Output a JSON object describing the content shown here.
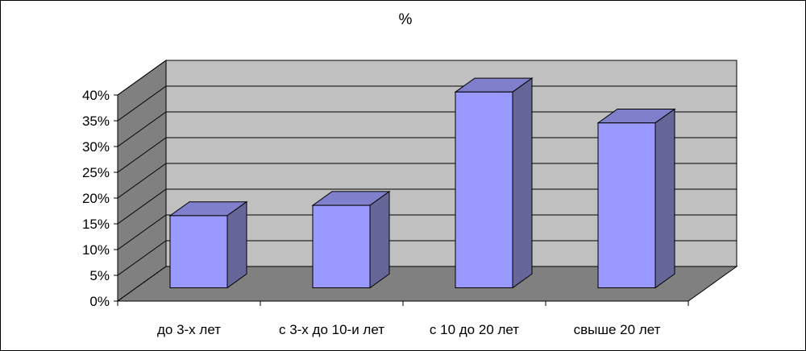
{
  "chart_data": {
    "type": "bar",
    "title": "%",
    "categories": [
      "до 3-х лет",
      "с 3-х до 10-и лет",
      "с 10 до 20 лет",
      "свыше 20 лет"
    ],
    "values": [
      14,
      16,
      38,
      32
    ],
    "value_unit": "%",
    "ylim": [
      0,
      40
    ],
    "ytick_labels": [
      "0%",
      "5%",
      "10%",
      "15%",
      "20%",
      "25%",
      "30%",
      "35%",
      "40%"
    ],
    "grid": true,
    "legend": "none",
    "style": "3d-column",
    "colors": {
      "bar_front": "#9999FF",
      "bar_side": "#666699",
      "bar_top": "#7F7FCC",
      "back_wall": "#C0C0C0",
      "side_wall": "#808080",
      "floor": "#808080"
    }
  }
}
